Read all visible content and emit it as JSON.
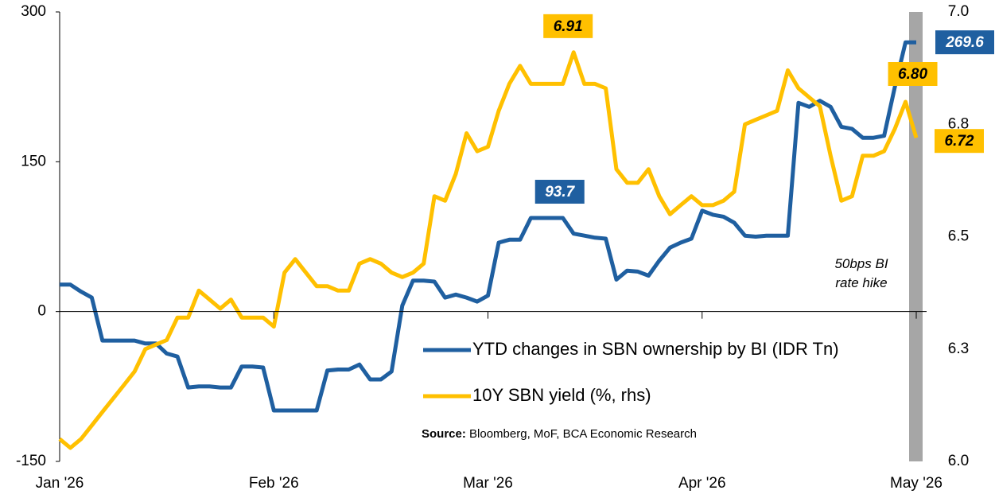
{
  "chart_data": {
    "type": "line",
    "categories": [
      "Jan '26",
      null,
      null,
      null,
      null,
      null,
      null,
      null,
      null,
      null,
      null,
      null,
      null,
      null,
      null,
      null,
      null,
      null,
      null,
      null,
      "Feb '26",
      null,
      null,
      null,
      null,
      null,
      null,
      null,
      null,
      null,
      null,
      null,
      null,
      null,
      null,
      null,
      null,
      null,
      null,
      null,
      "Mar '26",
      null,
      null,
      null,
      null,
      null,
      null,
      null,
      null,
      null,
      null,
      null,
      null,
      null,
      null,
      null,
      null,
      null,
      null,
      null,
      "Apr '26",
      null,
      null,
      null,
      null,
      null,
      null,
      null,
      null,
      null,
      null,
      null,
      null,
      null,
      null,
      null,
      null,
      null,
      null,
      null,
      "May '26"
    ],
    "series": [
      {
        "name": "YTD changes in SBN ownership by BI (IDR Tn)",
        "color": "#1f5fa0",
        "axis": "y",
        "values": [
          27,
          27,
          20,
          14,
          -29,
          -29,
          -29,
          -29,
          -32,
          -32,
          -42,
          -45,
          -76,
          -75,
          -75,
          -76,
          -76,
          -55,
          -55,
          -56,
          -99,
          -99,
          -99,
          -99,
          -99,
          -59,
          -58,
          -58,
          -53,
          -68,
          -68,
          -60,
          6,
          31,
          31,
          30,
          14,
          17,
          14,
          10,
          16,
          69,
          72,
          72,
          93.7,
          93.7,
          93.7,
          93.7,
          78,
          76,
          74,
          73,
          32,
          41,
          40,
          36,
          51,
          64,
          69,
          73,
          101,
          97,
          95,
          89,
          76,
          75,
          76,
          76,
          76,
          209,
          205,
          211,
          205,
          185,
          183,
          174,
          174,
          176,
          225,
          269.6,
          269.6
        ],
        "value_labels": [
          null,
          null,
          null,
          null,
          null,
          null,
          null,
          null,
          null,
          null,
          null,
          null,
          null,
          null,
          null,
          null,
          null,
          null,
          null,
          null,
          null,
          null,
          null,
          null,
          null,
          null,
          null,
          null,
          null,
          null,
          null,
          null,
          null,
          null,
          null,
          null,
          null,
          null,
          null,
          null,
          null,
          null,
          null,
          null,
          null,
          null,
          null,
          "93.7",
          null,
          null,
          null,
          null,
          null,
          null,
          null,
          null,
          null,
          null,
          null,
          null,
          null,
          null,
          null,
          null,
          null,
          null,
          null,
          null,
          null,
          null,
          null,
          null,
          null,
          null,
          null,
          null,
          null,
          null,
          null,
          null,
          "269.6"
        ]
      },
      {
        "name": "10Y SBN yield (%, rhs)",
        "color": "#ffc000",
        "axis": "y2",
        "values": [
          6.05,
          6.03,
          6.05,
          6.08,
          6.11,
          6.14,
          6.17,
          6.2,
          6.25,
          6.26,
          6.27,
          6.32,
          6.32,
          6.38,
          6.36,
          6.34,
          6.36,
          6.32,
          6.32,
          6.32,
          6.3,
          6.42,
          6.45,
          6.42,
          6.39,
          6.39,
          6.38,
          6.38,
          6.44,
          6.45,
          6.44,
          6.42,
          6.41,
          6.42,
          6.44,
          6.59,
          6.58,
          6.64,
          6.73,
          6.69,
          6.7,
          6.78,
          6.84,
          6.88,
          6.84,
          6.84,
          6.84,
          6.84,
          6.91,
          6.84,
          6.84,
          6.83,
          6.65,
          6.62,
          6.62,
          6.65,
          6.59,
          6.55,
          6.57,
          6.59,
          6.57,
          6.57,
          6.58,
          6.6,
          6.75,
          6.76,
          6.77,
          6.78,
          6.87,
          6.83,
          6.81,
          6.79,
          6.68,
          6.58,
          6.59,
          6.68,
          6.68,
          6.69,
          6.74,
          6.8,
          6.72
        ],
        "value_labels": [
          null,
          null,
          null,
          null,
          null,
          null,
          null,
          null,
          null,
          null,
          null,
          null,
          null,
          null,
          null,
          null,
          null,
          null,
          null,
          null,
          null,
          null,
          null,
          null,
          null,
          null,
          null,
          null,
          null,
          null,
          null,
          null,
          null,
          null,
          null,
          null,
          null,
          null,
          null,
          null,
          null,
          null,
          null,
          null,
          null,
          null,
          null,
          null,
          "6.91",
          null,
          null,
          null,
          null,
          null,
          null,
          null,
          null,
          null,
          null,
          null,
          null,
          null,
          null,
          null,
          null,
          null,
          null,
          null,
          null,
          null,
          null,
          null,
          null,
          null,
          null,
          null,
          null,
          null,
          null,
          "6.80",
          "6.72"
        ]
      }
    ],
    "ylim": [
      -150,
      300
    ],
    "yticks": [
      -150,
      0,
      150,
      300
    ],
    "y2lim": [
      6.0,
      7.0
    ],
    "y2ticks": [
      {
        "value": 6.0,
        "label": "6.0"
      },
      {
        "value": 6.25,
        "label": "6.3"
      },
      {
        "value": 6.5,
        "label": "6.5"
      },
      {
        "value": 6.75,
        "label": "6.8"
      },
      {
        "value": 7.0,
        "label": "7.0"
      }
    ],
    "grid": false,
    "annotation": "50bps BI rate hike",
    "source_label": "Source:",
    "source": "Bloomberg, MoF, BCA Economic Research"
  }
}
